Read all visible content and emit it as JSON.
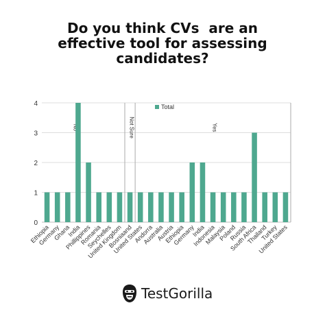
{
  "title_lines": [
    "Do you think CVs  are an",
    "effective tool for assessing",
    "candidates?"
  ],
  "brand": {
    "name": "TestGorilla"
  },
  "colors": {
    "bar": "#4ea88f",
    "grid": "#dddddd",
    "axis": "#bbbbbb",
    "divider": "#aaaaaa",
    "text": "#333333"
  },
  "chart_data": {
    "type": "bar",
    "title": "Do you think CVs  are an effective tool for assessing candidates?",
    "categories": [
      "Ethiopia",
      "Germany",
      "Ghana",
      "India",
      "Phillippines",
      "Romania",
      "Seychelles",
      "United Kingdom",
      "BosniaandHerzegovina",
      "United States",
      "Andorra",
      "Australia",
      "Austria",
      "Ethiopia",
      "Germany",
      "India",
      "Indonesia",
      "Malaysia",
      "Poland",
      "Russia",
      "South Africa",
      "Thailand",
      "Turkey",
      "United States"
    ],
    "tick_labels": [
      "Ethiopia",
      "Germany",
      "Ghana",
      "India",
      "Phillippines",
      "Romania",
      "Seychelles",
      "United Kingdom",
      "Bosniaand",
      "United States",
      "Andorra",
      "Australia",
      "Austria",
      "Ethiopia",
      "Germany",
      "India",
      "Indonesia",
      "Malaysia",
      "Poland",
      "Russia",
      "South Africa",
      "Thailand",
      "Turkey",
      "United States"
    ],
    "series": [
      {
        "name": "Total",
        "values": [
          1,
          1,
          1,
          4,
          2,
          1,
          1,
          1,
          1,
          1,
          1,
          1,
          1,
          1,
          2,
          2,
          1,
          1,
          1,
          1,
          3,
          1,
          1,
          1
        ]
      }
    ],
    "groups": [
      {
        "label": "No",
        "start": 0,
        "end": 7
      },
      {
        "label": "Not Sure",
        "start": 8,
        "end": 8
      },
      {
        "label": "Yes",
        "start": 9,
        "end": 23
      }
    ],
    "ylim": [
      0,
      4
    ],
    "yticks": [
      0,
      1,
      2,
      3,
      4
    ],
    "grid": true,
    "legend": "top-center",
    "xlabel": "",
    "ylabel": ""
  }
}
